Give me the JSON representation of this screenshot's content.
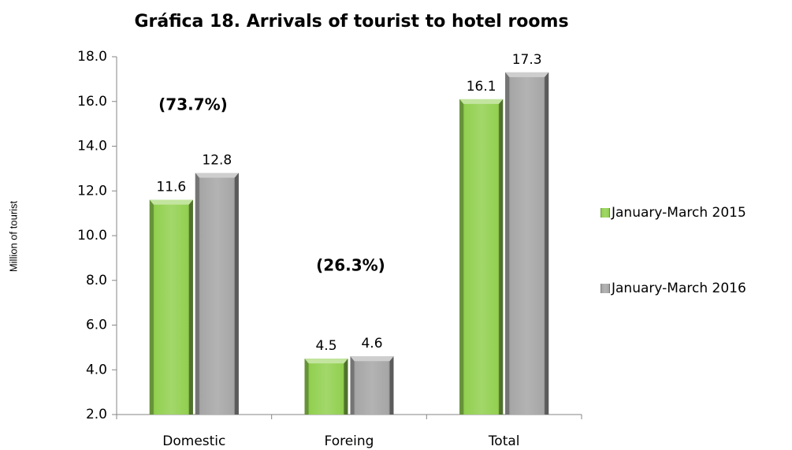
{
  "chart_data": {
    "type": "bar",
    "title": "Gráfica 18. Arrivals of tourist to hotel rooms",
    "y_label": "Million of tourist",
    "categories": [
      "Domestic",
      "Foreing",
      "Total"
    ],
    "series": [
      {
        "name": "January-March 2015",
        "color": "#92d050",
        "values": [
          11.6,
          4.5,
          16.1
        ]
      },
      {
        "name": "January-March 2016",
        "color": "#a6a6a6",
        "values": [
          12.8,
          4.6,
          17.3
        ]
      }
    ],
    "annotations": [
      "(73.7%)",
      "(26.3%)"
    ],
    "ylim": [
      2,
      18
    ],
    "yticks": [
      {
        "value": 2,
        "label": "2.0"
      },
      {
        "value": 4,
        "label": "4.0"
      },
      {
        "value": 6,
        "label": "6.0"
      },
      {
        "value": 8,
        "label": "8.0"
      },
      {
        "value": 10,
        "label": "10.0"
      },
      {
        "value": 12,
        "label": "12.0"
      },
      {
        "value": 14,
        "label": "14.0"
      },
      {
        "value": 16,
        "label": "16.0"
      },
      {
        "value": 18,
        "label": "18.0"
      }
    ],
    "legend": "right"
  }
}
